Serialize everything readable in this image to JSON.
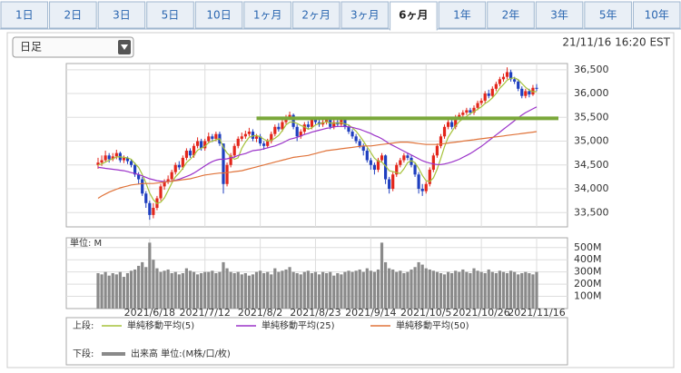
{
  "tabs": [
    "1日",
    "2日",
    "3日",
    "5日",
    "10日",
    "1ヶ月",
    "2ヶ月",
    "3ヶ月",
    "6ヶ月",
    "1年",
    "2年",
    "3年",
    "5年",
    "10年"
  ],
  "selected_tab": 8,
  "dropdown": "日足",
  "timestamp": "21/11/16 16:20 EST",
  "chart_data": {
    "type": "candlestick",
    "categories": [
      null,
      null,
      null,
      null,
      null,
      null,
      null,
      null,
      null,
      null,
      null,
      null,
      null,
      null,
      "2021/6/18",
      null,
      null,
      null,
      null,
      null,
      null,
      null,
      null,
      null,
      null,
      null,
      null,
      null,
      null,
      "2021/7/12",
      null,
      null,
      null,
      null,
      null,
      null,
      null,
      null,
      null,
      null,
      null,
      null,
      null,
      null,
      "2021/8/2",
      null,
      null,
      null,
      null,
      null,
      null,
      null,
      null,
      null,
      null,
      null,
      null,
      null,
      null,
      "2021/8/23",
      null,
      null,
      null,
      null,
      null,
      null,
      null,
      null,
      null,
      null,
      null,
      null,
      null,
      null,
      "2021/9/14",
      null,
      null,
      null,
      null,
      null,
      null,
      null,
      null,
      null,
      null,
      null,
      null,
      null,
      null,
      "2021/10/5",
      null,
      null,
      null,
      null,
      null,
      null,
      null,
      null,
      null,
      null,
      null,
      null,
      null,
      null,
      "2021/10/26",
      null,
      null,
      null,
      null,
      null,
      null,
      null,
      null,
      null,
      null,
      null,
      null,
      null,
      null,
      "2021/11/16"
    ],
    "open": [
      34500,
      34550,
      34600,
      34700,
      34620,
      34680,
      34750,
      34600,
      34650,
      34580,
      34500,
      34300,
      34200,
      33900,
      33700,
      33450,
      33600,
      33800,
      34050,
      34150,
      34200,
      34350,
      34500,
      34450,
      34650,
      34800,
      34700,
      34900,
      35000,
      34850,
      35000,
      35100,
      35050,
      35150,
      34950,
      34100,
      34500,
      34700,
      34900,
      35050,
      35100,
      35150,
      35200,
      35050,
      35100,
      34950,
      34900,
      35000,
      35150,
      35300,
      35250,
      35400,
      35500,
      35550,
      35300,
      35100,
      35200,
      35350,
      35300,
      35450,
      35400,
      35350,
      35400,
      35450,
      35300,
      35400,
      35350,
      35450,
      35300,
      35200,
      35100,
      35000,
      34900,
      34800,
      34600,
      34500,
      34400,
      34600,
      34700,
      34200,
      34000,
      34300,
      34500,
      34600,
      34700,
      34650,
      34500,
      34300,
      34000,
      33950,
      34100,
      34400,
      34700,
      34900,
      35100,
      35300,
      35400,
      35300,
      35500,
      35550,
      35600,
      35650,
      35600,
      35700,
      35800,
      35850,
      36000,
      35950,
      36100,
      36200,
      36300,
      36350,
      36450,
      36300,
      36250,
      36100,
      35950,
      36050,
      35980,
      36120
    ],
    "close": [
      34550,
      34600,
      34700,
      34620,
      34680,
      34750,
      34600,
      34650,
      34580,
      34500,
      34300,
      34200,
      33900,
      33700,
      33450,
      33600,
      33800,
      34050,
      34150,
      34200,
      34350,
      34500,
      34450,
      34650,
      34800,
      34700,
      34900,
      35000,
      34850,
      35000,
      35100,
      35050,
      35150,
      34950,
      34100,
      34500,
      34700,
      34900,
      35050,
      35100,
      35150,
      35200,
      35050,
      35100,
      34950,
      34900,
      35000,
      35150,
      35300,
      35250,
      35400,
      35500,
      35550,
      35300,
      35100,
      35200,
      35350,
      35300,
      35450,
      35400,
      35350,
      35400,
      35450,
      35300,
      35400,
      35350,
      35450,
      35300,
      35200,
      35100,
      35000,
      34900,
      34800,
      34600,
      34500,
      34400,
      34600,
      34700,
      34200,
      34000,
      34300,
      34500,
      34600,
      34700,
      34650,
      34500,
      34300,
      34000,
      33950,
      34100,
      34400,
      34700,
      34900,
      35100,
      35300,
      35400,
      35300,
      35500,
      35550,
      35600,
      35650,
      35600,
      35700,
      35800,
      35850,
      36000,
      35950,
      36100,
      36200,
      36300,
      36350,
      36450,
      36300,
      36250,
      36100,
      35950,
      36050,
      35980,
      36120,
      36100
    ],
    "high": [
      34650,
      34700,
      34800,
      34750,
      34750,
      34820,
      34780,
      34700,
      34680,
      34620,
      34550,
      34350,
      34250,
      33950,
      33750,
      33700,
      33850,
      34100,
      34200,
      34280,
      34400,
      34550,
      34580,
      34700,
      34850,
      34850,
      34950,
      35080,
      35050,
      35050,
      35180,
      35150,
      35200,
      35200,
      34950,
      34550,
      34750,
      34950,
      35100,
      35180,
      35220,
      35280,
      35250,
      35150,
      35150,
      35000,
      35050,
      35200,
      35350,
      35380,
      35450,
      35550,
      35620,
      35580,
      35350,
      35250,
      35400,
      35420,
      35500,
      35500,
      35450,
      35450,
      35500,
      35480,
      35450,
      35450,
      35500,
      35480,
      35350,
      35250,
      35150,
      35050,
      34950,
      34850,
      34650,
      34550,
      34650,
      34750,
      34720,
      34250,
      34350,
      34550,
      34650,
      34750,
      34750,
      34700,
      34550,
      34350,
      34100,
      34150,
      34450,
      34750,
      34950,
      35150,
      35350,
      35450,
      35450,
      35550,
      35600,
      35650,
      35700,
      35700,
      35750,
      35850,
      35900,
      36050,
      36080,
      36150,
      36250,
      36350,
      36420,
      36550,
      36500,
      36350,
      36300,
      36150,
      36100,
      36100,
      36180,
      36200
    ],
    "low": [
      34420,
      34480,
      34550,
      34550,
      34580,
      34620,
      34550,
      34540,
      34520,
      34450,
      34250,
      34100,
      33850,
      33600,
      33350,
      33380,
      33550,
      33750,
      33980,
      34100,
      34150,
      34300,
      34400,
      34400,
      34600,
      34650,
      34650,
      34850,
      34800,
      34800,
      34950,
      34980,
      35000,
      34900,
      33900,
      34050,
      34450,
      34650,
      34850,
      35000,
      35050,
      35100,
      35000,
      34980,
      34900,
      34820,
      34850,
      34950,
      35100,
      35200,
      35200,
      35350,
      35450,
      35250,
      35000,
      35050,
      35150,
      35250,
      35250,
      35350,
      35300,
      35300,
      35350,
      35250,
      35250,
      35300,
      35300,
      35250,
      35150,
      35050,
      34950,
      34850,
      34700,
      34550,
      34400,
      34300,
      34350,
      34550,
      34100,
      33900,
      33950,
      34250,
      34450,
      34550,
      34600,
      34450,
      34250,
      33900,
      33850,
      33900,
      34050,
      34350,
      34650,
      34850,
      35050,
      35250,
      35250,
      35250,
      35450,
      35500,
      35550,
      35550,
      35550,
      35650,
      35750,
      35800,
      35900,
      35900,
      36050,
      36150,
      36250,
      36300,
      36250,
      36200,
      36050,
      35900,
      35900,
      35920,
      35950,
      36050
    ],
    "up_color": "#e3261b",
    "down_color": "#1f3fbf",
    "series": [
      {
        "name": "単純移動平均(5)",
        "color": "#a6c23a",
        "values": [
          34500,
          34520,
          34560,
          34600,
          34630,
          34670,
          34670,
          34660,
          34650,
          34620,
          34530,
          34450,
          34300,
          34120,
          33910,
          33770,
          33690,
          33720,
          33810,
          33960,
          34120,
          34250,
          34330,
          34430,
          34550,
          34620,
          34700,
          34810,
          34850,
          34890,
          34970,
          35000,
          35030,
          35050,
          34870,
          34750,
          34680,
          34620,
          34650,
          34850,
          34980,
          35080,
          35110,
          35120,
          35090,
          35040,
          35000,
          35020,
          35060,
          35120,
          35220,
          35340,
          35400,
          35400,
          35370,
          35330,
          35300,
          35250,
          35280,
          35340,
          35370,
          35380,
          35410,
          35380,
          35380,
          35380,
          35390,
          35360,
          35340,
          35280,
          35210,
          35110,
          35000,
          34880,
          34760,
          34640,
          34580,
          34560,
          34480,
          34380,
          34360,
          34340,
          34320,
          34420,
          34550,
          34590,
          34550,
          34430,
          34280,
          34170,
          34150,
          34230,
          34410,
          34640,
          34880,
          35080,
          35200,
          35320,
          35410,
          35470,
          35520,
          35580,
          35620,
          35670,
          35720,
          35790,
          35840,
          35910,
          36000,
          36110,
          36190,
          36280,
          36320,
          36330,
          36290,
          36210,
          36130,
          36070,
          36040,
          36040
        ]
      },
      {
        "name": "単純移動平均(25)",
        "color": "#9b33c9",
        "values": [
          34450,
          34440,
          34430,
          34420,
          34410,
          34400,
          34390,
          34380,
          34360,
          34340,
          34320,
          34300,
          34270,
          34240,
          34210,
          34190,
          34170,
          34160,
          34150,
          34150,
          34160,
          34180,
          34200,
          34230,
          34260,
          34290,
          34330,
          34380,
          34430,
          34480,
          34530,
          34570,
          34600,
          34620,
          34620,
          34630,
          34650,
          34670,
          34700,
          34720,
          34740,
          34770,
          34800,
          34810,
          34820,
          34840,
          34860,
          34880,
          34900,
          34930,
          34960,
          35000,
          35040,
          35060,
          35080,
          35110,
          35140,
          35160,
          35190,
          35210,
          35230,
          35250,
          35270,
          35280,
          35300,
          35310,
          35310,
          35310,
          35300,
          35290,
          35270,
          35250,
          35220,
          35190,
          35160,
          35120,
          35090,
          35050,
          35000,
          34950,
          34910,
          34870,
          34830,
          34790,
          34750,
          34710,
          34670,
          34630,
          34590,
          34560,
          34540,
          34520,
          34510,
          34510,
          34520,
          34540,
          34560,
          34590,
          34620,
          34660,
          34700,
          34740,
          34790,
          34840,
          34890,
          34950,
          35010,
          35070,
          35130,
          35190,
          35250,
          35310,
          35370,
          35430,
          35490,
          35550,
          35600,
          35640,
          35680,
          35720
        ]
      },
      {
        "name": "単純移動平均(50)",
        "color": "#e0733a",
        "values": [
          33800,
          33850,
          33890,
          33930,
          33960,
          33990,
          34020,
          34040,
          34060,
          34080,
          34090,
          34100,
          34110,
          34110,
          34110,
          34110,
          34120,
          34130,
          34140,
          34150,
          34160,
          34170,
          34180,
          34190,
          34200,
          34210,
          34230,
          34250,
          34270,
          34290,
          34300,
          34310,
          34320,
          34330,
          34330,
          34340,
          34350,
          34360,
          34370,
          34380,
          34400,
          34420,
          34440,
          34460,
          34480,
          34500,
          34520,
          34540,
          34560,
          34580,
          34600,
          34620,
          34640,
          34660,
          34670,
          34680,
          34690,
          34700,
          34720,
          34740,
          34760,
          34780,
          34800,
          34810,
          34820,
          34830,
          34840,
          34850,
          34860,
          34870,
          34880,
          34890,
          34900,
          34900,
          34900,
          34910,
          34920,
          34930,
          34940,
          34950,
          34960,
          34970,
          34980,
          34980,
          34980,
          34970,
          34960,
          34950,
          34940,
          34930,
          34930,
          34930,
          34930,
          34940,
          34950,
          34960,
          34970,
          34980,
          34990,
          35000,
          35010,
          35020,
          35030,
          35040,
          35050,
          35060,
          35070,
          35080,
          35090,
          35100,
          35110,
          35120,
          35130,
          35140,
          35150,
          35160,
          35170,
          35180,
          35190,
          35200
        ]
      }
    ],
    "ylim": [
      33200,
      36630
    ],
    "yticks": [
      {
        "value": 33500,
        "label": "33,500"
      },
      {
        "value": 34000,
        "label": "34,000"
      },
      {
        "value": 34500,
        "label": "34,500"
      },
      {
        "value": 35000,
        "label": "35,000"
      },
      {
        "value": 35500,
        "label": "35,500"
      },
      {
        "value": 36000,
        "label": "36,000"
      },
      {
        "value": 36500,
        "label": "36,500"
      }
    ],
    "hline": {
      "value": 35480,
      "start_index": 43,
      "color": "#7aa83a"
    },
    "grid": true,
    "volume": {
      "title": "単位: M",
      "name": "出来高 単位:(M株/口/枚)",
      "color": "#8a8a8a",
      "values": [
        290,
        280,
        300,
        270,
        290,
        280,
        300,
        260,
        290,
        310,
        320,
        350,
        380,
        340,
        540,
        400,
        330,
        300,
        310,
        320,
        290,
        300,
        280,
        290,
        330,
        310,
        300,
        280,
        290,
        300,
        300,
        310,
        290,
        300,
        380,
        330,
        300,
        290,
        300,
        280,
        290,
        270,
        280,
        300,
        310,
        290,
        300,
        280,
        330,
        300,
        310,
        320,
        340,
        300,
        290,
        280,
        300,
        310,
        290,
        300,
        280,
        300,
        290,
        300,
        270,
        290,
        280,
        300,
        310,
        300,
        310,
        320,
        300,
        330,
        310,
        300,
        320,
        540,
        380,
        330,
        320,
        300,
        310,
        290,
        300,
        320,
        340,
        380,
        360,
        330,
        320,
        310,
        300,
        290,
        280,
        300,
        290,
        310,
        300,
        320,
        300,
        290,
        330,
        310,
        300,
        290,
        320,
        300,
        290,
        310,
        300,
        290,
        310,
        300,
        280,
        290,
        300,
        290,
        280,
        300
      ],
      "ylim": [
        0,
        580
      ],
      "yticks": [
        {
          "value": 100,
          "label": "100M"
        },
        {
          "value": 200,
          "label": "200M"
        },
        {
          "value": 300,
          "label": "300M"
        },
        {
          "value": 400,
          "label": "400M"
        },
        {
          "value": 500,
          "label": "500M"
        }
      ]
    },
    "legend": {
      "upper": "上段:",
      "lower": "下段:"
    }
  }
}
